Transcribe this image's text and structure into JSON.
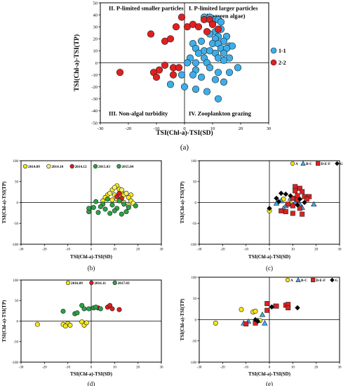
{
  "chart_data": [
    {
      "id": "a",
      "type": "scatter",
      "panel_label": "(a)",
      "xlabel": "TSI(Chl-a)-TSI(SD)",
      "ylabel": "TSI(Chl-a)-TSI(TP)",
      "xlim": [
        -30,
        30
      ],
      "ylim": [
        -50,
        50
      ],
      "xticks": [
        -30,
        -20,
        -10,
        0,
        10,
        20,
        30
      ],
      "yticks": [
        -50,
        -40,
        -30,
        -20,
        -10,
        0,
        10,
        20,
        30,
        40,
        50
      ],
      "legend_position": "right",
      "quadrant_labels": {
        "top_left": "II. P-limited smaller particles",
        "top_right_line1": "I. P-limited larger particles",
        "top_right_line2": "(bluegreen algae)",
        "bottom_left": "III. Non-algal turbidity",
        "bottom_right": "IV. Zooplankton grazing"
      },
      "series": [
        {
          "name": "1-1",
          "color": "#3daee9",
          "marker": "circle",
          "points": [
            [
              7,
              38
            ],
            [
              9,
              38
            ],
            [
              11,
              36
            ],
            [
              12,
              36
            ],
            [
              13,
              34
            ],
            [
              10,
              32
            ],
            [
              13,
              28
            ],
            [
              11,
              26
            ],
            [
              9,
              24
            ],
            [
              12,
              22
            ],
            [
              15,
              22
            ],
            [
              11,
              20
            ],
            [
              14,
              18
            ],
            [
              3,
              16
            ],
            [
              6,
              18
            ],
            [
              10,
              16
            ],
            [
              12,
              16
            ],
            [
              16,
              14
            ],
            [
              17,
              14
            ],
            [
              4,
              12
            ],
            [
              13,
              12
            ],
            [
              15,
              12
            ],
            [
              7,
              10
            ],
            [
              9,
              10
            ],
            [
              5,
              8
            ],
            [
              11,
              8
            ],
            [
              14,
              8
            ],
            [
              2,
              4
            ],
            [
              7,
              4
            ],
            [
              12,
              4
            ],
            [
              16,
              4
            ],
            [
              1,
              0
            ],
            [
              4,
              0
            ],
            [
              8,
              0
            ],
            [
              14,
              2
            ],
            [
              19,
              -4
            ],
            [
              4,
              -6
            ],
            [
              9,
              -4
            ],
            [
              12,
              -8
            ],
            [
              16,
              -8
            ],
            [
              -1,
              -10
            ],
            [
              3,
              -10
            ],
            [
              6,
              -12
            ],
            [
              11,
              -14
            ],
            [
              14,
              -16
            ],
            [
              -5,
              -18
            ],
            [
              0,
              -20
            ],
            [
              4,
              -22
            ],
            [
              8,
              -24
            ],
            [
              12,
              -30
            ]
          ]
        },
        {
          "name": "2-2",
          "color": "#e02020",
          "marker": "circle",
          "points": [
            [
              -23,
              -8
            ],
            [
              -12,
              24
            ],
            [
              -7,
              18
            ],
            [
              -5,
              20
            ],
            [
              -3,
              30
            ],
            [
              -1,
              38
            ],
            [
              1,
              30
            ],
            [
              3,
              32
            ],
            [
              5,
              30
            ],
            [
              7,
              36
            ],
            [
              8,
              26
            ],
            [
              9,
              36
            ],
            [
              10,
              32
            ],
            [
              12,
              28
            ],
            [
              -11,
              -8
            ],
            [
              -10,
              -12
            ],
            [
              -9,
              -6
            ],
            [
              -7,
              -2
            ],
            [
              -4,
              -4
            ],
            [
              -4,
              -10
            ],
            [
              -2,
              -4
            ]
          ]
        }
      ]
    },
    {
      "id": "b",
      "type": "scatter",
      "panel_label": "(b)",
      "xlabel": "TSI(Chl-a)-TSI(SD)",
      "ylabel": "TSI(Chl-a)-TSI(TP)",
      "xlim": [
        -30,
        30
      ],
      "ylim": [
        -100,
        100
      ],
      "xticks": [
        -30,
        -20,
        -10,
        0,
        10,
        20,
        30
      ],
      "yticks": [
        -100,
        -50,
        0,
        50,
        100
      ],
      "legend_position": "top",
      "series": [
        {
          "name": "2014.09",
          "color": "#f5e71a",
          "marker": "circle",
          "points": [
            [
              11,
              40
            ],
            [
              12,
              32
            ],
            [
              9,
              30
            ],
            [
              13,
              26
            ],
            [
              7,
              18
            ],
            [
              10,
              18
            ],
            [
              14,
              18
            ],
            [
              17,
              18
            ],
            [
              6,
              12
            ],
            [
              12,
              14
            ],
            [
              16,
              12
            ],
            [
              5,
              4
            ],
            [
              9,
              6
            ],
            [
              13,
              4
            ],
            [
              17,
              4
            ]
          ]
        },
        {
          "name": "2014.10",
          "color": "#f9f16a",
          "marker": "circle",
          "points": [
            [
              10,
              36
            ],
            [
              13,
              30
            ],
            [
              15,
              22
            ],
            [
              8,
              22
            ],
            [
              11,
              8
            ],
            [
              14,
              0
            ],
            [
              18,
              -2
            ],
            [
              16,
              -8
            ]
          ]
        },
        {
          "name": "2014.12",
          "color": "#d81e1e",
          "marker": "circle",
          "points": [
            [
              12,
              22
            ],
            [
              11,
              14
            ],
            [
              13,
              10
            ]
          ]
        },
        {
          "name": "2015.03",
          "color": "#2aa346",
          "marker": "circle",
          "points": [
            [
              7,
              8
            ],
            [
              12,
              4
            ],
            [
              2,
              2
            ],
            [
              5,
              -4
            ],
            [
              9,
              -6
            ],
            [
              14,
              -4
            ],
            [
              19,
              -8
            ],
            [
              1,
              -12
            ],
            [
              6,
              -16
            ],
            [
              11,
              -14
            ],
            [
              16,
              -12
            ],
            [
              -1,
              -22
            ],
            [
              3,
              -24
            ],
            [
              8,
              -26
            ],
            [
              13,
              -28
            ],
            [
              -1,
              -14
            ]
          ]
        },
        {
          "name": "2015.04",
          "color": "#2aa346",
          "marker": "circle",
          "points": [
            [
              4,
              -10
            ],
            [
              10,
              -20
            ],
            [
              15,
              -22
            ]
          ]
        }
      ]
    },
    {
      "id": "c",
      "type": "scatter",
      "panel_label": "(c)",
      "xlabel": "TSI(Chl-a)-TSI(SD)",
      "ylabel": "TSI(Chl-a)-TSI(TP)",
      "xlim": [
        -30,
        30
      ],
      "ylim": [
        -100,
        100
      ],
      "xticks": [
        -30,
        -20,
        -10,
        0,
        10,
        20,
        30
      ],
      "yticks": [
        -100,
        -50,
        0,
        50,
        100
      ],
      "legend_position": "top-right",
      "series": [
        {
          "name": "A",
          "color": "#f5e71a",
          "marker": "circle",
          "points": [
            [
              0,
              -20
            ],
            [
              6,
              8
            ],
            [
              9,
              -2
            ]
          ]
        },
        {
          "name": "B-C",
          "color": "#3daee9",
          "marker": "triangle",
          "points": [
            [
              3,
              -2
            ],
            [
              5,
              4
            ],
            [
              7,
              -8
            ],
            [
              9,
              10
            ],
            [
              11,
              0
            ],
            [
              13,
              -4
            ],
            [
              19,
              -4
            ],
            [
              14,
              -12
            ],
            [
              6,
              -14
            ]
          ]
        },
        {
          "name": "D-E-F",
          "color": "#e02020",
          "marker": "square",
          "points": [
            [
              11,
              38
            ],
            [
              13,
              34
            ],
            [
              11,
              28
            ],
            [
              14,
              26
            ],
            [
              15,
              14
            ],
            [
              17,
              14
            ],
            [
              12,
              16
            ],
            [
              10,
              10
            ],
            [
              8,
              -4
            ],
            [
              10,
              -8
            ],
            [
              13,
              -14
            ],
            [
              7,
              -22
            ],
            [
              10,
              -26
            ],
            [
              14,
              -28
            ],
            [
              5,
              -20
            ],
            [
              16,
              8
            ],
            [
              12,
              6
            ]
          ]
        },
        {
          "name": "G",
          "color": "#000000",
          "marker": "diamond",
          "points": [
            [
              0,
              -14
            ],
            [
              5,
              22
            ],
            [
              7,
              20
            ],
            [
              9,
              16
            ],
            [
              13,
              8
            ],
            [
              15,
              0
            ],
            [
              12,
              -6
            ],
            [
              4,
              2
            ],
            [
              3,
              10
            ]
          ]
        }
      ]
    },
    {
      "id": "d",
      "type": "scatter",
      "panel_label": "(d)",
      "xlabel": "TSI(Chl-a)-TSI(SD)",
      "ylabel": "TSI(Chl-a)-TSI(TP)",
      "xlim": [
        -30,
        30
      ],
      "ylim": [
        -100,
        100
      ],
      "xticks": [
        -30,
        -20,
        -10,
        0,
        10,
        20,
        30
      ],
      "yticks": [
        -100,
        -50,
        0,
        50,
        100
      ],
      "legend_position": "top",
      "series": [
        {
          "name": "2016.09",
          "color": "#f5e71a",
          "marker": "circle",
          "points": [
            [
              -23,
              -8
            ],
            [
              -12,
              -8
            ],
            [
              -10,
              -6
            ],
            [
              -9,
              -10
            ],
            [
              -11,
              -12
            ],
            [
              -4,
              -2
            ],
            [
              -3,
              -10
            ],
            [
              -2,
              -4
            ]
          ]
        },
        {
          "name": "2016.11",
          "color": "#d81e1e",
          "marker": "circle",
          "points": [
            [
              7,
              34
            ],
            [
              8,
              38
            ],
            [
              9,
              30
            ],
            [
              12,
              28
            ],
            [
              3,
              32
            ]
          ]
        },
        {
          "name": "2017.03",
          "color": "#2aa346",
          "marker": "circle",
          "points": [
            [
              -12,
              24
            ],
            [
              -7,
              18
            ],
            [
              -6,
              20
            ],
            [
              -4,
              38
            ],
            [
              -3,
              30
            ],
            [
              -1,
              30
            ],
            [
              1,
              32
            ],
            [
              2,
              34
            ],
            [
              4,
              30
            ]
          ]
        }
      ]
    },
    {
      "id": "e",
      "type": "scatter",
      "panel_label": "(e)",
      "xlabel": "TSI(Chl-a)-TSI(SD)",
      "ylabel": "TSI(Chl-a)-TSI(TP)",
      "xlim": [
        -30,
        30
      ],
      "ylim": [
        -100,
        100
      ],
      "xticks": [
        -30,
        -20,
        -10,
        0,
        10,
        20,
        30
      ],
      "yticks": [
        -100,
        -50,
        0,
        50,
        100
      ],
      "legend_position": "top-right",
      "series": [
        {
          "name": "A",
          "color": "#f5e71a",
          "marker": "circle",
          "points": [
            [
              -23,
              -8
            ],
            [
              -12,
              24
            ],
            [
              -7,
              18
            ],
            [
              -6,
              20
            ],
            [
              -4,
              -2
            ]
          ]
        },
        {
          "name": "B-C",
          "color": "#3daee9",
          "marker": "triangle",
          "points": [
            [
              -11,
              -8
            ],
            [
              -9,
              -4
            ],
            [
              -5,
              -2
            ],
            [
              -2,
              -8
            ],
            [
              -3,
              12
            ],
            [
              2,
              32
            ]
          ]
        },
        {
          "name": "D-E-F",
          "color": "#e02020",
          "marker": "square",
          "points": [
            [
              -10,
              -10
            ],
            [
              -6,
              -8
            ],
            [
              -1,
              22
            ],
            [
              -1,
              38
            ],
            [
              7,
              34
            ],
            [
              8,
              36
            ],
            [
              8,
              28
            ],
            [
              3,
              32
            ]
          ]
        },
        {
          "name": "G",
          "color": "#000000",
          "marker": "diamond",
          "points": [
            [
              -6,
              0
            ],
            [
              -5,
              -4
            ],
            [
              1,
              30
            ],
            [
              12,
              28
            ]
          ]
        }
      ]
    }
  ]
}
